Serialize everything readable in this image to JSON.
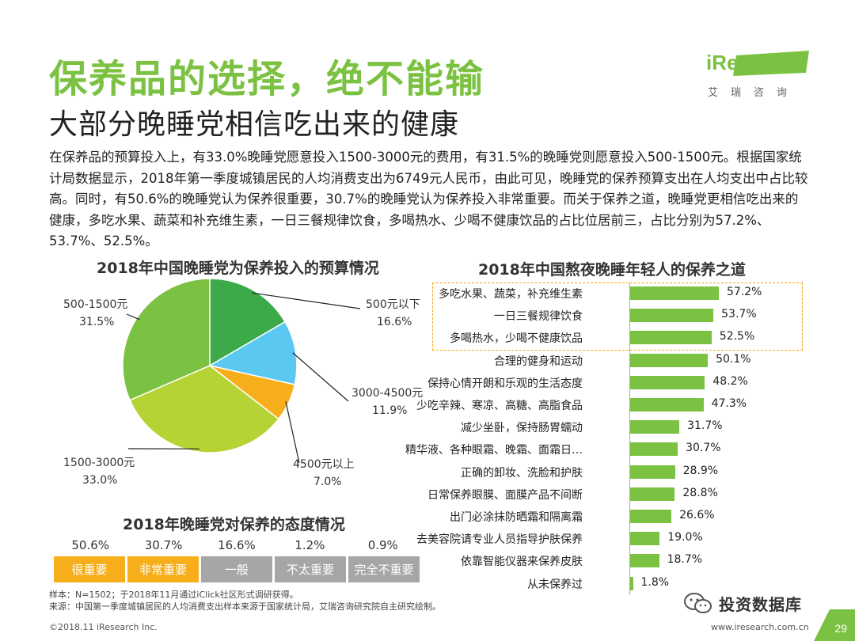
{
  "header": {
    "title": "保养品的选择，绝不能输",
    "subtitle": "大部分晚睡党相信吃出来的健康",
    "logo": "iResearch",
    "logo_sub": "艾瑞咨询"
  },
  "intro": "在保养品的预算投入上，有33.0%晚睡党愿意投入1500-3000元的费用，有31.5%的晚睡党则愿意投入500-1500元。根据国家统计局数据显示，2018年第一季度城镇居民的人均消费支出为6749元人民币，由此可见，晚睡党的保养预算支出在人均支出中占比较高。同时，有50.6%的晚睡党认为保养很重要，30.7%的晚睡党认为保养投入非常重要。而关于保养之道，晚睡党更相信吃出来的健康，多吃水果、蔬菜和补充维生素，一日三餐规律饮食，多喝热水、少喝不健康饮品的占比位居前三，占比分别为57.2%、53.7%、52.5%。",
  "pie_title": "2018年中国晚睡党为保养投入的预算情况",
  "bar_title": "2018年中国熬夜晚睡年轻人的保养之道",
  "attitude_title": "2018年晚睡党对保养的态度情况",
  "chart_data": [
    {
      "type": "pie",
      "title": "2018年中国晚睡党为保养投入的预算情况",
      "slices": [
        {
          "label": "500元以下",
          "value": 16.6,
          "display": "16.6%",
          "color": "#3daa4a"
        },
        {
          "label": "3000-4500元",
          "value": 11.9,
          "display": "11.9%",
          "color": "#5bc8f2"
        },
        {
          "label": "4500元以上",
          "value": 7.0,
          "display": "7.0%",
          "color": "#f6ae1a"
        },
        {
          "label": "1500-3000元",
          "value": 33.0,
          "display": "33.0%",
          "color": "#b5d334"
        },
        {
          "label": "500-1500元",
          "value": 31.5,
          "display": "31.5%",
          "color": "#7cc242"
        }
      ]
    },
    {
      "type": "bar",
      "orientation": "horizontal",
      "title": "2018年中国熬夜晚睡年轻人的保养之道",
      "xlim": [
        0,
        60
      ],
      "categories": [
        "多吃水果、蔬菜，补充维生素",
        "一日三餐规律饮食",
        "多喝热水，少喝不健康饮品",
        "合理的健身和运动",
        "保持心情开朗和乐观的生活态度",
        "少吃辛辣、寒凉、高糖、高脂食品",
        "减少坐卧，保持肠胃蠕动",
        "精华液、各种眼霜、晚霜、面霜日…",
        "正确的卸妆、洗脸和护肤",
        "日常保养眼膜、面膜产品不间断",
        "出门必涂抹防晒霜和隔离霜",
        "去美容院请专业人员指导护肤保养",
        "依靠智能仪器来保养皮肤",
        "从未保养过"
      ],
      "values": [
        57.2,
        53.7,
        52.5,
        50.1,
        48.2,
        47.3,
        31.7,
        30.7,
        28.9,
        28.8,
        26.6,
        19.0,
        18.7,
        1.8
      ],
      "value_labels": [
        "57.2%",
        "53.7%",
        "52.5%",
        "50.1%",
        "48.2%",
        "47.3%",
        "31.7%",
        "30.7%",
        "28.9%",
        "28.8%",
        "26.6%",
        "19.0%",
        "18.7%",
        "1.8%"
      ],
      "highlight_top": 3,
      "highlight_color": "#f3a81b",
      "bar_color": "#7cc242"
    },
    {
      "type": "table",
      "title": "2018年晚睡党对保养的态度情况",
      "categories": [
        "很重要",
        "非常重要",
        "一般",
        "不太重要",
        "完全不重要"
      ],
      "values": [
        50.6,
        30.7,
        16.6,
        1.2,
        0.9
      ],
      "value_labels": [
        "50.6%",
        "30.7%",
        "16.6%",
        "1.2%",
        "0.9%"
      ],
      "colors": [
        "#f6ae1a",
        "#f6ae1a",
        "#a6a6a6",
        "#a6a6a6",
        "#a6a6a6"
      ]
    }
  ],
  "notes": {
    "sample": "样本：N=1502；于2018年11月通过iClick社区形式调研获得。",
    "source": "来源：中国第一季度城镇居民的人均消费支出样本来源于国家统计局，艾瑞咨询研究院自主研究绘制。"
  },
  "footer": {
    "copyright": "©2018.11 iResearch Inc.",
    "website": "www.iresearch.com.cn",
    "wechat": "投资数据库",
    "page": "29"
  }
}
